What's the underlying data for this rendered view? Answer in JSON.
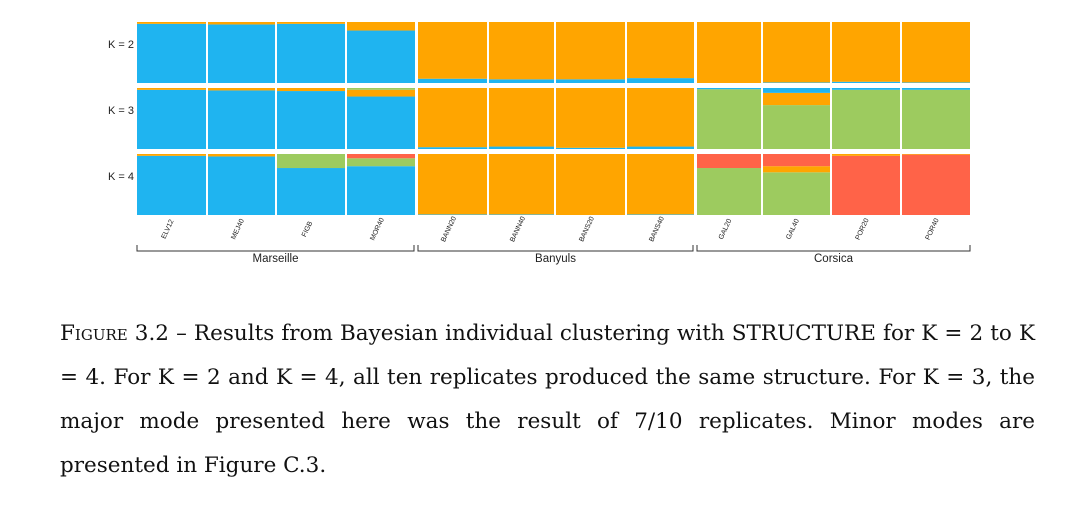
{
  "chart_data": {
    "type": "structure_barplot",
    "colors": {
      "blue": "#1fb4f0",
      "orange": "#ffa500",
      "green": "#9dcb5f",
      "red": "#ff6348"
    },
    "k_labels": [
      "K = 2",
      "K = 3",
      "K = 4"
    ],
    "populations": [
      {
        "label": "ELV12",
        "region": "Marseille"
      },
      {
        "label": "MEJ40",
        "region": "Marseille"
      },
      {
        "label": "FIGB",
        "region": "Marseille"
      },
      {
        "label": "MOR40",
        "region": "Marseille"
      },
      {
        "label": "BANN20",
        "region": "Banyuls"
      },
      {
        "label": "BANN40",
        "region": "Banyuls"
      },
      {
        "label": "BANS20",
        "region": "Banyuls"
      },
      {
        "label": "BANS40",
        "region": "Banyuls"
      },
      {
        "label": "GAL20",
        "region": "Corsica"
      },
      {
        "label": "GAL40",
        "region": "Corsica"
      },
      {
        "label": "POR20",
        "region": "Corsica"
      },
      {
        "label": "POR40",
        "region": "Corsica"
      }
    ],
    "regions": [
      "Marseille",
      "Banyuls",
      "Corsica"
    ],
    "membership": [
      [
        [
          [
            "blue",
            0.97
          ],
          [
            "orange",
            0.03
          ]
        ],
        [
          [
            "blue",
            0.96
          ],
          [
            "orange",
            0.04
          ]
        ],
        [
          [
            "blue",
            0.97
          ],
          [
            "orange",
            0.03
          ]
        ],
        [
          [
            "blue",
            0.86
          ],
          [
            "orange",
            0.14
          ]
        ],
        [
          [
            "blue",
            0.07
          ],
          [
            "orange",
            0.93
          ]
        ],
        [
          [
            "blue",
            0.06
          ],
          [
            "orange",
            0.94
          ]
        ],
        [
          [
            "blue",
            0.06
          ],
          [
            "orange",
            0.94
          ]
        ],
        [
          [
            "blue",
            0.08
          ],
          [
            "orange",
            0.92
          ]
        ],
        [
          [
            "orange",
            1.0
          ]
        ],
        [
          [
            "blue",
            0.01
          ],
          [
            "orange",
            0.99
          ]
        ],
        [
          [
            "blue",
            0.02
          ],
          [
            "orange",
            0.98
          ]
        ],
        [
          [
            "blue",
            0.01
          ],
          [
            "orange",
            0.99
          ]
        ]
      ],
      [
        [
          [
            "blue",
            0.97
          ],
          [
            "orange",
            0.03
          ]
        ],
        [
          [
            "blue",
            0.96
          ],
          [
            "orange",
            0.04
          ]
        ],
        [
          [
            "blue",
            0.95
          ],
          [
            "orange",
            0.05
          ]
        ],
        [
          [
            "blue",
            0.86
          ],
          [
            "orange",
            0.11
          ],
          [
            "green",
            0.03
          ]
        ],
        [
          [
            "blue",
            0.03
          ],
          [
            "orange",
            0.97
          ]
        ],
        [
          [
            "blue",
            0.04
          ],
          [
            "orange",
            0.96
          ]
        ],
        [
          [
            "blue",
            0.02
          ],
          [
            "orange",
            0.98
          ]
        ],
        [
          [
            "blue",
            0.04
          ],
          [
            "orange",
            0.96
          ]
        ],
        [
          [
            "green",
            0.98
          ],
          [
            "blue",
            0.02
          ]
        ],
        [
          [
            "green",
            0.72
          ],
          [
            "orange",
            0.2
          ],
          [
            "blue",
            0.08
          ]
        ],
        [
          [
            "green",
            0.97
          ],
          [
            "blue",
            0.03
          ]
        ],
        [
          [
            "green",
            0.97
          ],
          [
            "blue",
            0.03
          ]
        ]
      ],
      [
        [
          [
            "blue",
            0.97
          ],
          [
            "orange",
            0.03
          ]
        ],
        [
          [
            "blue",
            0.96
          ],
          [
            "orange",
            0.04
          ]
        ],
        [
          [
            "blue",
            0.77
          ],
          [
            "green",
            0.23
          ]
        ],
        [
          [
            "blue",
            0.8
          ],
          [
            "green",
            0.13
          ],
          [
            "red",
            0.07
          ]
        ],
        [
          [
            "blue",
            0.01
          ],
          [
            "orange",
            0.99
          ]
        ],
        [
          [
            "blue",
            0.01
          ],
          [
            "orange",
            0.99
          ]
        ],
        [
          [
            "orange",
            1.0
          ]
        ],
        [
          [
            "blue",
            0.01
          ],
          [
            "orange",
            0.99
          ]
        ],
        [
          [
            "green",
            0.77
          ],
          [
            "red",
            0.23
          ]
        ],
        [
          [
            "green",
            0.7
          ],
          [
            "orange",
            0.1
          ],
          [
            "red",
            0.2
          ]
        ],
        [
          [
            "red",
            0.97
          ],
          [
            "orange",
            0.03
          ]
        ],
        [
          [
            "red",
            0.99
          ],
          [
            "orange",
            0.01
          ]
        ]
      ]
    ]
  },
  "caption": {
    "figure_label": "Figure 3.2",
    "text": " – Results from Bayesian individual clustering with STRUCTURE for K = 2 to K = 4. For K = 2 and K = 4, all ten replicates produced the same structure. For K = 3, the major mode presented here was the result of 7/10 replicates. Minor modes are presented in Figure C.3."
  }
}
